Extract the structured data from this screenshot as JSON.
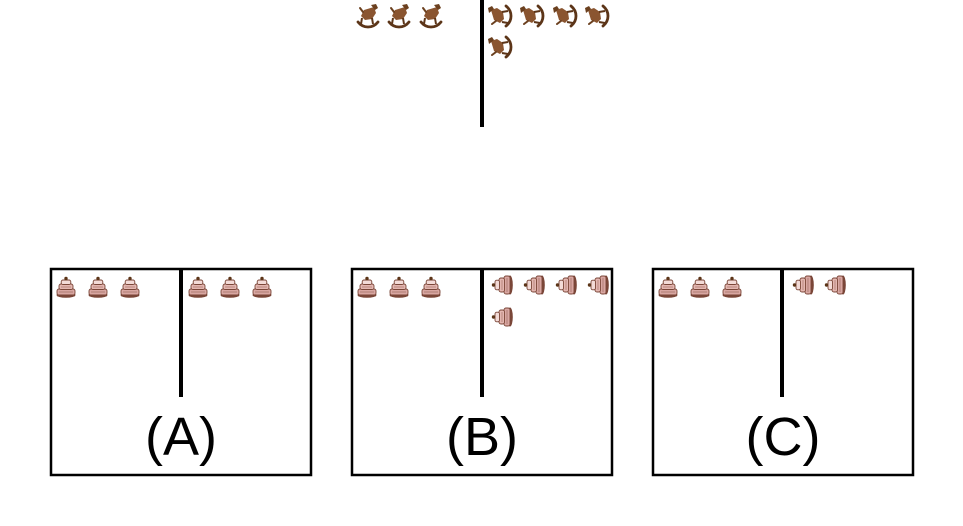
{
  "question_figure": {
    "left_group": {
      "item": "rocking-horse-icon",
      "count": 3
    },
    "right_group": {
      "item": "rocking-horse-icon",
      "count": 5,
      "orientation": "rotated"
    }
  },
  "options": [
    {
      "label": "(A)",
      "left_group": {
        "item": "cake-icon",
        "count": 3
      },
      "right_group": {
        "item": "cake-icon",
        "count": 3
      }
    },
    {
      "label": "(B)",
      "left_group": {
        "item": "cake-icon",
        "count": 3
      },
      "right_group": {
        "item": "cake-icon",
        "count": 5,
        "orientation": "rotated"
      }
    },
    {
      "label": "(C)",
      "left_group": {
        "item": "cake-icon",
        "count": 3
      },
      "right_group": {
        "item": "cake-icon",
        "count": 2,
        "orientation": "rotated"
      }
    }
  ],
  "colors": {
    "line": "#000000",
    "horse_body": "#8a5530",
    "horse_dark": "#5c3518",
    "cake_pink": "#d9a7a2",
    "cake_dark": "#7a4638",
    "cake_light": "#f3dbd7"
  }
}
